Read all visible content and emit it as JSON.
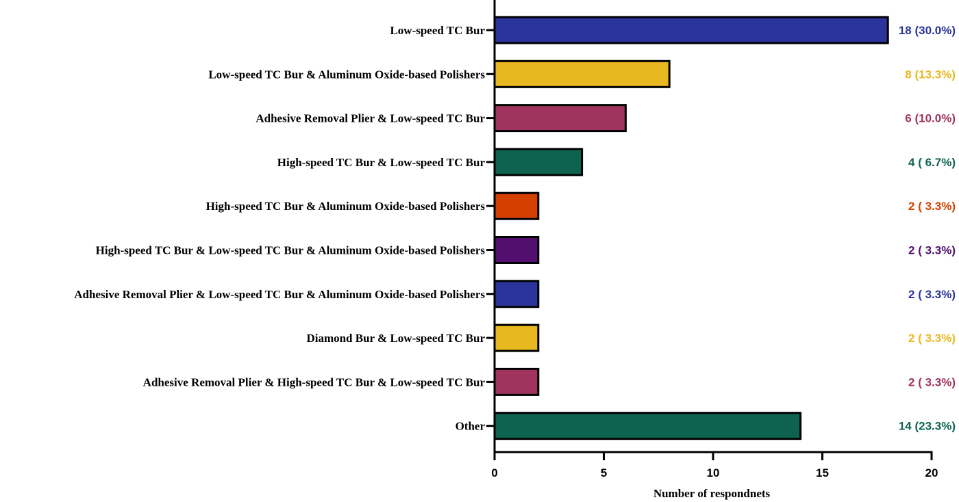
{
  "chart_data": {
    "type": "bar",
    "orientation": "horizontal",
    "categories": [
      "Low-speed TC Bur",
      "Low-speed TC Bur & Aluminum Oxide-based Polishers",
      "Adhesive Removal Plier & Low-speed TC Bur",
      "High-speed TC Bur & Low-speed TC Bur",
      "High-speed TC Bur & Aluminum Oxide-based Polishers",
      "High-speed TC Bur & Low-speed TC Bur & Aluminum Oxide-based Polishers",
      "Adhesive Removal Plier & Low-speed TC Bur & Aluminum Oxide-based Polishers",
      "Diamond Bur & Low-speed TC Bur",
      "Adhesive Removal Plier & High-speed TC Bur & Low-speed TC Bur",
      "Other"
    ],
    "values": [
      18,
      8,
      6,
      4,
      2,
      2,
      2,
      2,
      2,
      14
    ],
    "value_labels": [
      "18 (30.0%)",
      "8 (13.3%)",
      "6 (10.0%)",
      "4 ( 6.7%)",
      "2 ( 3.3%)",
      "2 ( 3.3%)",
      "2 ( 3.3%)",
      "2 ( 3.3%)",
      "2 ( 3.3%)",
      "14 (23.3%)"
    ],
    "colors": [
      "#2a349b",
      "#e8b820",
      "#a0345f",
      "#0e6350",
      "#d44000",
      "#520f6e",
      "#2a349b",
      "#e8b820",
      "#a0345f",
      "#0e6350"
    ],
    "xlabel": "Number of respondnets",
    "ylabel": "",
    "title": "",
    "xlim": [
      0,
      20
    ],
    "xticks": [
      0,
      5,
      10,
      15,
      20
    ],
    "grid": false,
    "legend": "none"
  }
}
